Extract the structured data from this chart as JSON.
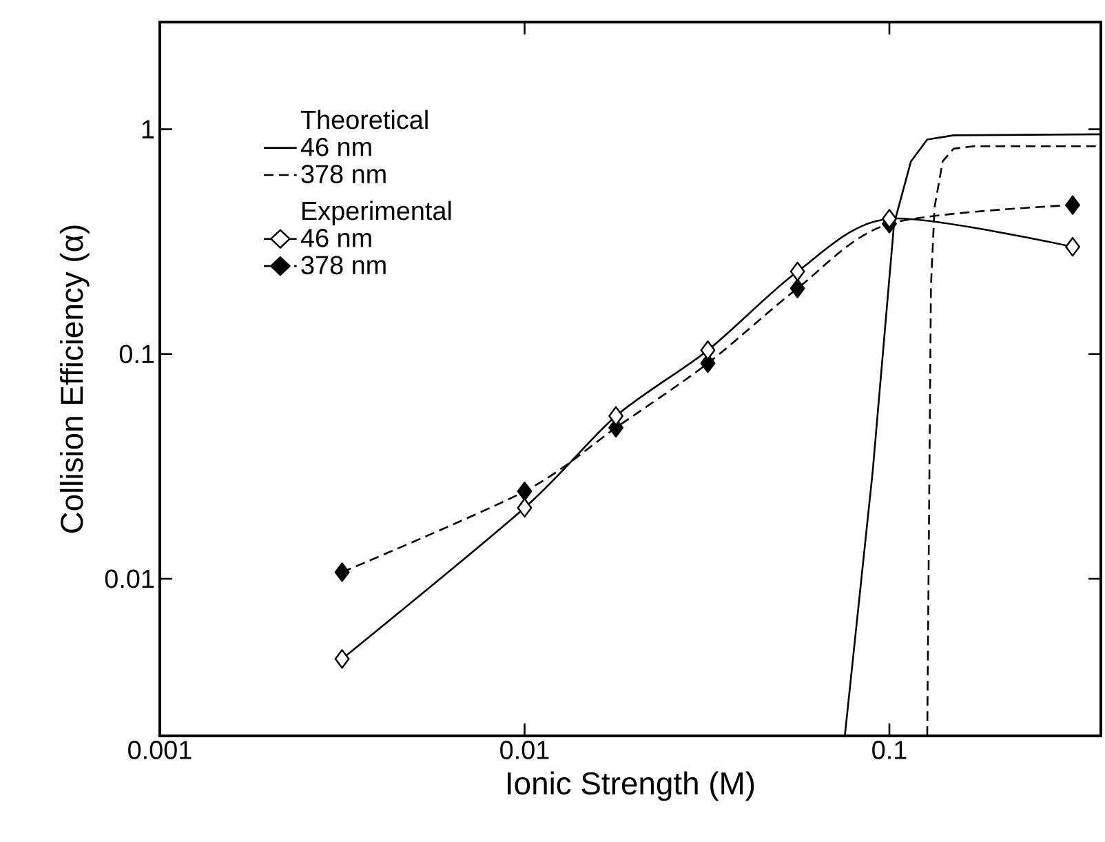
{
  "chart_data": {
    "type": "line",
    "xlabel": "Ionic Strength (M)",
    "ylabel": "Collision Efficiency (α)",
    "legend_title": "Theoretical",
    "annotations": [
      "Experimental"
    ],
    "log": "xy",
    "xlim": [
      0.001,
      0.38
    ],
    "ylim": [
      0.002,
      3
    ],
    "xticks": [
      0.001,
      0.01,
      0.1
    ],
    "yticks": [
      0.01,
      0.1,
      1
    ],
    "legend": "top left",
    "grid": false,
    "series": [
      {
        "name": "46 nm",
        "color": "#000000",
        "line_style": "solid",
        "marker": "none",
        "x": [
          0.0755,
          0.09,
          0.103,
          0.1146,
          0.127,
          0.15,
          0.38
        ],
        "values": [
          0.002,
          0.03,
          0.38,
          0.72,
          0.9,
          0.94,
          0.95
        ]
      },
      {
        "name": "378 nm",
        "color": "#000000",
        "line_style": "dashed",
        "marker": "none",
        "x": [
          0.127,
          0.13,
          0.133,
          0.14,
          0.15,
          0.17,
          0.38
        ],
        "values": [
          0.002,
          0.2,
          0.45,
          0.72,
          0.82,
          0.84,
          0.84
        ]
      },
      {
        "name": "46 nm",
        "color": "#000000",
        "line_style": "solid",
        "marker": "diamond",
        "x": [
          0.00316,
          0.01,
          0.0178,
          0.0318,
          0.056,
          0.1,
          0.318
        ],
        "values": [
          0.0044,
          0.0207,
          0.053,
          0.104,
          0.233,
          0.4,
          0.3
        ]
      },
      {
        "name": "378 nm",
        "color": "#000000",
        "line_style": "dashed",
        "marker": "diamond",
        "x": [
          0.00316,
          0.01,
          0.0178,
          0.0318,
          0.056,
          0.1,
          0.318
        ],
        "values": [
          0.0107,
          0.0245,
          0.047,
          0.091,
          0.196,
          0.38,
          0.46
        ]
      }
    ]
  }
}
